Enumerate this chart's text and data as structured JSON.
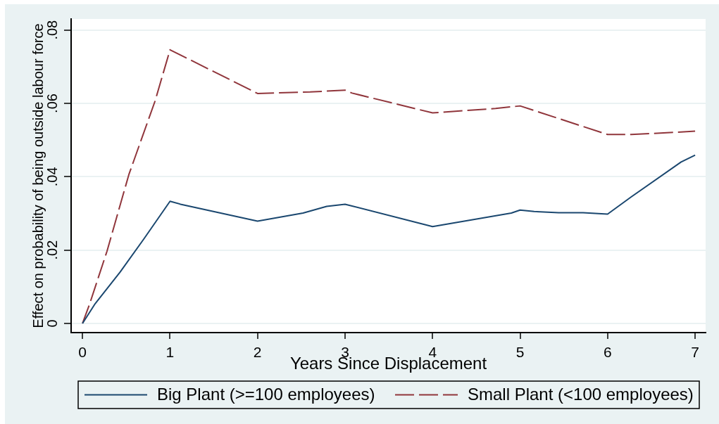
{
  "chart_data": {
    "type": "line",
    "xlabel": "Years Since Displacement",
    "ylabel": "Effect on probability of being outside labour force",
    "xlim": [
      -0.13,
      7.12
    ],
    "xticks": [
      0,
      1,
      2,
      3,
      4,
      5,
      6,
      7
    ],
    "ylim": [
      -0.0025,
      0.083
    ],
    "yticks": [
      0,
      {
        "value": 0.02,
        "label": ".02"
      },
      {
        "value": 0.04,
        "label": ".04"
      },
      {
        "value": 0.06,
        "label": ".06"
      },
      {
        "value": 0.08,
        "label": ".08"
      }
    ],
    "grid": "y",
    "legend": "bottom",
    "series": [
      {
        "name": "Big Plant (>=100 employees)",
        "color": "#1a476f",
        "line_style": "solid",
        "x": [
          0,
          0.145,
          0.43,
          0.7,
          1,
          1.12,
          2,
          2.52,
          2.79,
          3,
          4,
          4.9,
          5,
          5.16,
          5.44,
          5.72,
          6,
          6.27,
          6.84,
          7
        ],
        "values": [
          0,
          0.0054,
          0.014,
          0.023,
          0.0333,
          0.0325,
          0.0279,
          0.0301,
          0.0319,
          0.0325,
          0.0264,
          0.0301,
          0.0309,
          0.0305,
          0.0302,
          0.0302,
          0.0298,
          0.0345,
          0.044,
          0.0459
        ]
      },
      {
        "name": "Small Plant (<100 employees)",
        "color": "#90353b",
        "line_style": "dashed",
        "x": [
          0,
          0.08,
          0.28,
          0.53,
          0.83,
          1,
          2,
          2.6,
          3,
          3.08,
          4,
          4.72,
          5,
          6,
          6.27,
          7
        ],
        "values": [
          0,
          0.0052,
          0.0197,
          0.0406,
          0.0607,
          0.0746,
          0.0627,
          0.0631,
          0.0636,
          0.0628,
          0.0574,
          0.0586,
          0.0593,
          0.0515,
          0.0515,
          0.0524
        ]
      }
    ]
  }
}
